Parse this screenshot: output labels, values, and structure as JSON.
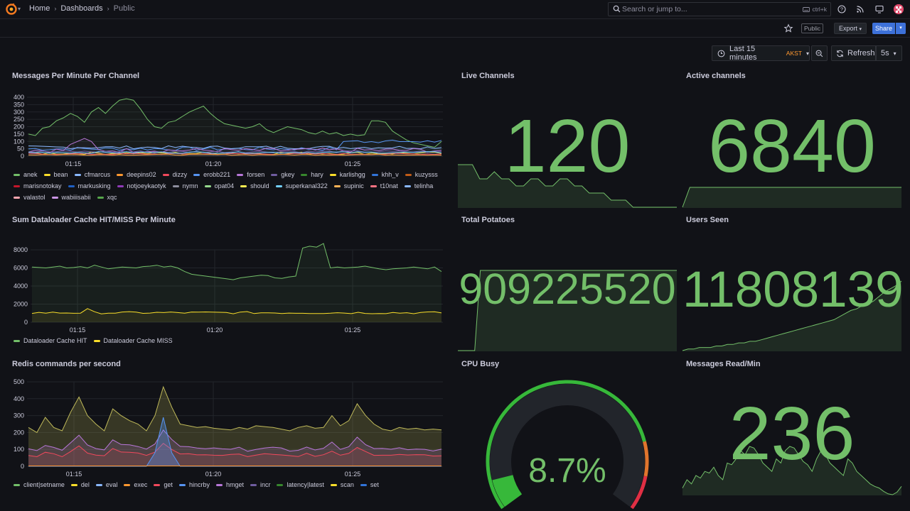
{
  "topbar": {
    "breadcrumb": [
      "Home",
      "Dashboards",
      "Public"
    ],
    "search_placeholder": "Search or jump to...",
    "search_shortcut": "ctrl+k",
    "icons": [
      "help-icon",
      "news-icon",
      "tv-icon",
      "avatar"
    ]
  },
  "subbar": {
    "public_tag": "Public",
    "export_label": "Export",
    "share_label": "Share"
  },
  "timebar": {
    "range_label": "Last 15 minutes",
    "timezone": "AKST",
    "refresh_label": "Refresh",
    "interval": "5s"
  },
  "colors": {
    "green": "#73bf69",
    "yellow": "#fade2a",
    "blue": "#5794f2",
    "orange": "#ff9830",
    "red": "#f2495c",
    "purple": "#b877d9",
    "bg": "#111217"
  },
  "panels": {
    "messages": {
      "title": "Messages Per Minute Per Channel",
      "y_ticks": [
        "400",
        "350",
        "300",
        "250",
        "200",
        "150",
        "100",
        "50",
        "0"
      ],
      "x_ticks": [
        "01:15",
        "01:20",
        "01:25"
      ],
      "legend": [
        {
          "name": "anek",
          "color": "#73bf69"
        },
        {
          "name": "bean",
          "color": "#fade2a"
        },
        {
          "name": "cfmarcus",
          "color": "#8ab8ff"
        },
        {
          "name": "deepins02",
          "color": "#ff9830"
        },
        {
          "name": "dizzy",
          "color": "#f2495c"
        },
        {
          "name": "erobb221",
          "color": "#5794f2"
        },
        {
          "name": "forsen",
          "color": "#b877d9"
        },
        {
          "name": "gkey",
          "color": "#705da0"
        },
        {
          "name": "hary",
          "color": "#37872d"
        },
        {
          "name": "karlishgg",
          "color": "#fade2a"
        },
        {
          "name": "khh_v",
          "color": "#3274d9"
        },
        {
          "name": "kuzysss",
          "color": "#c15c17"
        },
        {
          "name": "marisnotokay",
          "color": "#c4162a"
        },
        {
          "name": "markusking",
          "color": "#1f60c4"
        },
        {
          "name": "notjoeykaotyk",
          "color": "#8f3bb8"
        },
        {
          "name": "nymn",
          "color": "#8e8e9e"
        },
        {
          "name": "opat04",
          "color": "#96d98d"
        },
        {
          "name": "should",
          "color": "#ffee52"
        },
        {
          "name": "superkanal322",
          "color": "#73d0ff"
        },
        {
          "name": "supinic",
          "color": "#ffb357"
        },
        {
          "name": "t10nat",
          "color": "#ff7383"
        },
        {
          "name": "telinha",
          "color": "#8ab8ff"
        },
        {
          "name": "valastol",
          "color": "#ffa6b0"
        },
        {
          "name": "wabiiisabii",
          "color": "#ca95e5"
        },
        {
          "name": "xqc",
          "color": "#56a64b"
        }
      ]
    },
    "dataloader": {
      "title": "Sum Dataloader Cache HIT/MISS Per Minute",
      "y_ticks": [
        "8000",
        "6000",
        "4000",
        "2000",
        "0"
      ],
      "x_ticks": [
        "01:15",
        "01:20",
        "01:25"
      ],
      "legend": [
        {
          "name": "Dataloader Cache HIT",
          "color": "#73bf69"
        },
        {
          "name": "Dataloader Cache MISS",
          "color": "#fade2a"
        }
      ]
    },
    "redis": {
      "title": "Redis commands per second",
      "y_ticks": [
        "500",
        "400",
        "300",
        "200",
        "100",
        "0"
      ],
      "x_ticks": [
        "01:15",
        "01:20",
        "01:25"
      ],
      "legend": [
        {
          "name": "client|setname",
          "color": "#73bf69"
        },
        {
          "name": "del",
          "color": "#fade2a"
        },
        {
          "name": "eval",
          "color": "#8ab8ff"
        },
        {
          "name": "exec",
          "color": "#ff9830"
        },
        {
          "name": "get",
          "color": "#f2495c"
        },
        {
          "name": "hincrby",
          "color": "#5794f2"
        },
        {
          "name": "hmget",
          "color": "#b877d9"
        },
        {
          "name": "incr",
          "color": "#705da0"
        },
        {
          "name": "latency|latest",
          "color": "#37872d"
        },
        {
          "name": "scan",
          "color": "#fade2a"
        },
        {
          "name": "set",
          "color": "#3274d9"
        }
      ]
    },
    "live_channels": {
      "title": "Live Channels",
      "value": "120"
    },
    "active_channels": {
      "title": "Active channels",
      "value": "6840"
    },
    "total_potatoes": {
      "title": "Total Potatoes",
      "value": "909225520"
    },
    "users_seen": {
      "title": "Users Seen",
      "value": "11808139"
    },
    "cpu_busy": {
      "title": "CPU Busy",
      "value": "8.7%",
      "percent": 8.7
    },
    "messages_read": {
      "title": "Messages Read/Min",
      "value": "236"
    }
  }
}
